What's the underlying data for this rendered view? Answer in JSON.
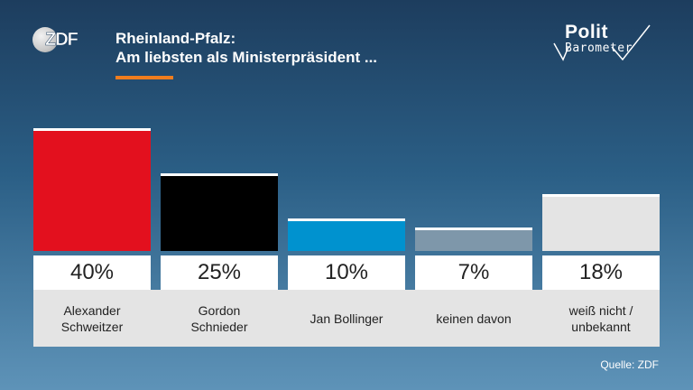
{
  "header": {
    "title_line1": "Rheinland-Pfalz:",
    "title_line2": "Am liebsten als Ministerpräsident ...",
    "accent_color": "#f07d1e"
  },
  "logos": {
    "broadcaster": "ZDF",
    "program_word1": "Polit",
    "program_word2": "Barometer"
  },
  "chart_data": {
    "type": "bar",
    "title": "Am liebsten als Ministerpräsident ...",
    "categories": [
      "Alexander\nSchweitzer",
      "Gordon\nSchnieder",
      "Jan Bollinger",
      "keinen davon",
      "weiß nicht /\nunbekannt"
    ],
    "values": [
      40,
      25,
      10,
      7,
      18
    ],
    "value_labels": [
      "40%",
      "25%",
      "10%",
      "7%",
      "18%"
    ],
    "colors": [
      "#e3101e",
      "#000000",
      "#0092cf",
      "#7e97aa",
      "#e4e4e4"
    ],
    "unit": "%",
    "ylim": [
      0,
      40
    ],
    "grid": false,
    "legend": "none"
  },
  "footer": {
    "source": "Quelle: ZDF"
  }
}
